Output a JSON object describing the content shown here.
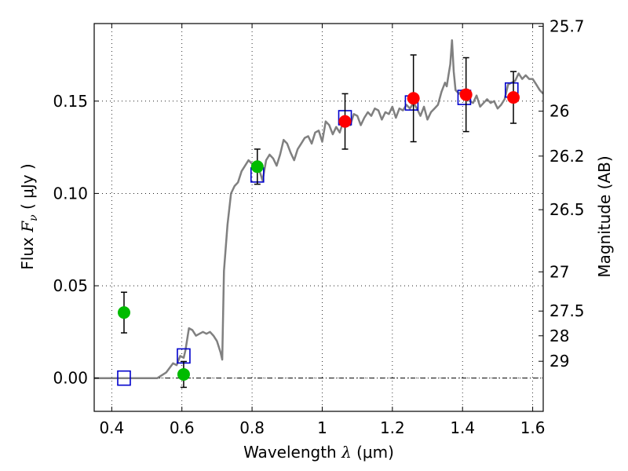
{
  "chart_data": {
    "type": "scatter",
    "title": "",
    "xlabel": {
      "prefix": "Wavelength  ",
      "symbol": "λ",
      "unit": " (μm)"
    },
    "ylabel": {
      "prefix": "Flux  ",
      "symbol": "F",
      "subscript": "ν",
      "unit": "  ( μJy )"
    },
    "y2label": "Magnitude (AB)",
    "xlim": [
      0.35,
      1.63
    ],
    "ylim": [
      -0.018,
      0.192
    ],
    "grid": true,
    "x_ticks": [
      0.4,
      0.6,
      0.8,
      1.0,
      1.2,
      1.4,
      1.6
    ],
    "x_tick_labels": [
      "0.4",
      "0.6",
      "0.8",
      "1",
      "1.2",
      "1.4",
      "1.6"
    ],
    "y_ticks": [
      0.0,
      0.05,
      0.1,
      0.15
    ],
    "y_tick_labels": [
      "0.00",
      "0.05",
      "0.10",
      "0.15"
    ],
    "mag_ticks": [
      {
        "label": "25.7",
        "mag": 25.7
      },
      {
        "label": "26",
        "mag": 26.0
      },
      {
        "label": "26.2",
        "mag": 26.2
      },
      {
        "label": "26.5",
        "mag": 26.5
      },
      {
        "label": "27",
        "mag": 27.0
      },
      {
        "label": "27.5",
        "mag": 27.5
      },
      {
        "label": "28",
        "mag": 28.0
      },
      {
        "label": "29",
        "mag": 29.0
      }
    ],
    "series": [
      {
        "kind": "line",
        "color": "#808080",
        "points": [
          [
            0.35,
            0.0
          ],
          [
            0.53,
            0.0
          ],
          [
            0.555,
            0.003
          ],
          [
            0.575,
            0.008
          ],
          [
            0.585,
            0.007
          ],
          [
            0.595,
            0.012
          ],
          [
            0.605,
            0.011
          ],
          [
            0.61,
            0.015
          ],
          [
            0.62,
            0.027
          ],
          [
            0.63,
            0.026
          ],
          [
            0.64,
            0.023
          ],
          [
            0.65,
            0.024
          ],
          [
            0.66,
            0.025
          ],
          [
            0.67,
            0.024
          ],
          [
            0.68,
            0.025
          ],
          [
            0.69,
            0.023
          ],
          [
            0.7,
            0.02
          ],
          [
            0.71,
            0.014
          ],
          [
            0.715,
            0.01
          ],
          [
            0.72,
            0.058
          ],
          [
            0.73,
            0.083
          ],
          [
            0.74,
            0.1
          ],
          [
            0.75,
            0.104
          ],
          [
            0.76,
            0.106
          ],
          [
            0.77,
            0.112
          ],
          [
            0.78,
            0.115
          ],
          [
            0.79,
            0.118
          ],
          [
            0.8,
            0.116
          ],
          [
            0.81,
            0.117
          ],
          [
            0.82,
            0.113
          ],
          [
            0.83,
            0.107
          ],
          [
            0.84,
            0.118
          ],
          [
            0.85,
            0.121
          ],
          [
            0.86,
            0.119
          ],
          [
            0.87,
            0.115
          ],
          [
            0.88,
            0.121
          ],
          [
            0.89,
            0.129
          ],
          [
            0.9,
            0.127
          ],
          [
            0.91,
            0.122
          ],
          [
            0.92,
            0.118
          ],
          [
            0.93,
            0.124
          ],
          [
            0.94,
            0.127
          ],
          [
            0.95,
            0.13
          ],
          [
            0.96,
            0.131
          ],
          [
            0.97,
            0.127
          ],
          [
            0.98,
            0.133
          ],
          [
            0.99,
            0.134
          ],
          [
            1.0,
            0.128
          ],
          [
            1.01,
            0.139
          ],
          [
            1.02,
            0.137
          ],
          [
            1.03,
            0.132
          ],
          [
            1.04,
            0.136
          ],
          [
            1.05,
            0.133
          ],
          [
            1.06,
            0.139
          ],
          [
            1.07,
            0.141
          ],
          [
            1.08,
            0.137
          ],
          [
            1.09,
            0.143
          ],
          [
            1.1,
            0.142
          ],
          [
            1.11,
            0.137
          ],
          [
            1.12,
            0.141
          ],
          [
            1.13,
            0.144
          ],
          [
            1.14,
            0.142
          ],
          [
            1.15,
            0.146
          ],
          [
            1.16,
            0.145
          ],
          [
            1.17,
            0.14
          ],
          [
            1.18,
            0.144
          ],
          [
            1.19,
            0.143
          ],
          [
            1.2,
            0.147
          ],
          [
            1.21,
            0.141
          ],
          [
            1.22,
            0.146
          ],
          [
            1.23,
            0.145
          ],
          [
            1.24,
            0.148
          ],
          [
            1.25,
            0.146
          ],
          [
            1.26,
            0.149
          ],
          [
            1.27,
            0.146
          ],
          [
            1.28,
            0.142
          ],
          [
            1.29,
            0.147
          ],
          [
            1.3,
            0.14
          ],
          [
            1.31,
            0.144
          ],
          [
            1.32,
            0.146
          ],
          [
            1.33,
            0.148
          ],
          [
            1.34,
            0.155
          ],
          [
            1.35,
            0.16
          ],
          [
            1.355,
            0.158
          ],
          [
            1.36,
            0.164
          ],
          [
            1.365,
            0.17
          ],
          [
            1.37,
            0.183
          ],
          [
            1.375,
            0.166
          ],
          [
            1.38,
            0.156
          ],
          [
            1.39,
            0.154
          ],
          [
            1.4,
            0.156
          ],
          [
            1.41,
            0.152
          ],
          [
            1.42,
            0.15
          ],
          [
            1.43,
            0.149
          ],
          [
            1.44,
            0.153
          ],
          [
            1.45,
            0.147
          ],
          [
            1.46,
            0.149
          ],
          [
            1.47,
            0.151
          ],
          [
            1.48,
            0.149
          ],
          [
            1.49,
            0.15
          ],
          [
            1.5,
            0.146
          ],
          [
            1.51,
            0.148
          ],
          [
            1.52,
            0.151
          ],
          [
            1.53,
            0.159
          ],
          [
            1.54,
            0.16
          ],
          [
            1.55,
            0.161
          ],
          [
            1.56,
            0.165
          ],
          [
            1.57,
            0.162
          ],
          [
            1.58,
            0.164
          ],
          [
            1.59,
            0.162
          ],
          [
            1.6,
            0.162
          ],
          [
            1.61,
            0.159
          ],
          [
            1.62,
            0.156
          ],
          [
            1.63,
            0.154
          ]
        ]
      },
      {
        "kind": "squares",
        "color": "#0000cc",
        "points": [
          [
            0.435,
            0.0
          ],
          [
            0.605,
            0.012
          ],
          [
            0.815,
            0.11
          ],
          [
            1.065,
            0.141
          ],
          [
            1.255,
            0.149
          ],
          [
            1.405,
            0.152
          ],
          [
            1.54,
            0.156
          ]
        ]
      },
      {
        "kind": "circles",
        "color": "#00bb00",
        "points": [
          {
            "x": 0.435,
            "y": 0.0355,
            "err": 0.011
          },
          {
            "x": 0.605,
            "y": 0.002,
            "err": 0.007
          },
          {
            "x": 0.815,
            "y": 0.1145,
            "err": 0.0095
          }
        ]
      },
      {
        "kind": "circles",
        "color": "#ff0000",
        "points": [
          {
            "x": 1.065,
            "y": 0.139,
            "err": 0.015
          },
          {
            "x": 1.26,
            "y": 0.1515,
            "err": 0.0235
          },
          {
            "x": 1.41,
            "y": 0.1535,
            "err": 0.02
          },
          {
            "x": 1.545,
            "y": 0.152,
            "err": 0.014
          }
        ]
      }
    ]
  }
}
